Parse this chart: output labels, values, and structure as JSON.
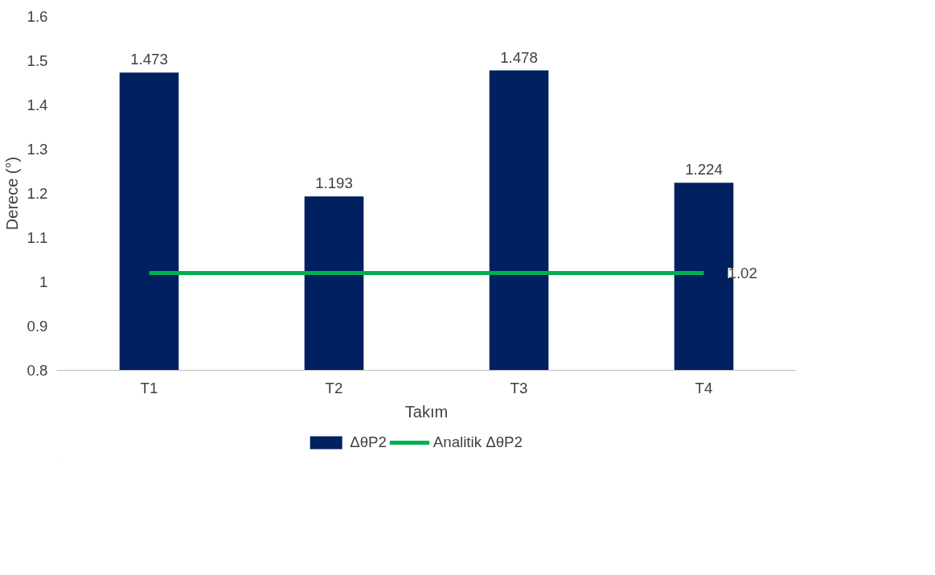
{
  "chart_data": {
    "type": "bar",
    "xlabel": "Takım",
    "ylabel": "Derece (°)",
    "categories": [
      "T1",
      "T2",
      "T3",
      "T4"
    ],
    "series": [
      {
        "name": "ΔθP2",
        "color": "#002060",
        "values": [
          1.473,
          1.193,
          1.478,
          1.224
        ],
        "value_labels": [
          "1.473",
          "1.193",
          "1.478",
          "1.224"
        ]
      },
      {
        "name": "Analitik ΔθP2",
        "type": "line",
        "color": "#00b050",
        "values": [
          1.02,
          1.02,
          1.02,
          1.02
        ],
        "value_labels": [
          null,
          null,
          null,
          "1.02"
        ]
      }
    ],
    "ylim": [
      0.8,
      1.6
    ],
    "yticks": [
      0.8,
      0.9,
      1,
      1.1,
      1.2,
      1.3,
      1.4,
      1.5,
      1.6
    ],
    "grid": false,
    "legend": "bottom",
    "line_style": "solid",
    "marker": "none"
  }
}
